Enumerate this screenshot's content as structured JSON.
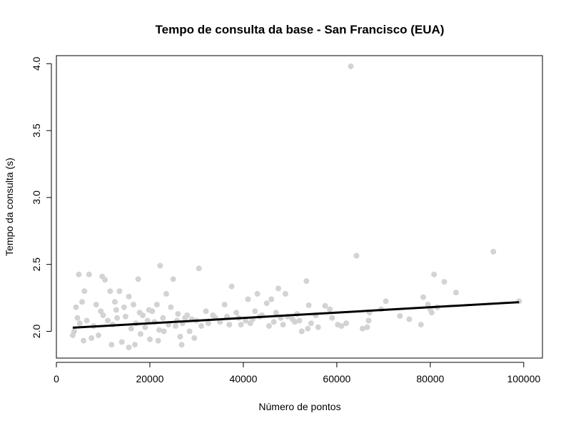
{
  "chart_data": {
    "type": "scatter",
    "title": "Tempo de consulta da base - San Francisco (EUA)",
    "xlabel": "Número de pontos",
    "ylabel": "Tempo da consulta (s)",
    "xlim": [
      0,
      104000
    ],
    "ylim": [
      1.8,
      4.06
    ],
    "x_ticks": [
      0,
      20000,
      40000,
      60000,
      80000,
      100000
    ],
    "x_tick_labels": [
      "0",
      "20000",
      "40000",
      "60000",
      "80000",
      "100000"
    ],
    "y_ticks": [
      2.0,
      2.5,
      3.0,
      3.5,
      4.0
    ],
    "y_tick_labels": [
      "2.0",
      "2.5",
      "3.0",
      "3.5",
      "4.0"
    ],
    "grid": false,
    "point_color": "#d3d3d3",
    "line_color": "#000000",
    "trend_line": {
      "x": [
        3500,
        99000
      ],
      "y": [
        2.027,
        2.218
      ]
    },
    "series": [
      {
        "points": [
          [
            63000,
            3.98
          ],
          [
            64200,
            2.565
          ],
          [
            93500,
            2.595
          ],
          [
            22200,
            2.49
          ],
          [
            30500,
            2.47
          ],
          [
            4800,
            2.425
          ],
          [
            7000,
            2.425
          ],
          [
            9800,
            2.41
          ],
          [
            10400,
            2.385
          ],
          [
            17500,
            2.39
          ],
          [
            25000,
            2.39
          ],
          [
            37500,
            2.335
          ],
          [
            43000,
            2.28
          ],
          [
            47500,
            2.32
          ],
          [
            53500,
            2.375
          ],
          [
            54000,
            2.195
          ],
          [
            57500,
            2.19
          ],
          [
            58500,
            2.165
          ],
          [
            60200,
            2.05
          ],
          [
            62000,
            2.06
          ],
          [
            65500,
            2.02
          ],
          [
            66500,
            2.03
          ],
          [
            66800,
            2.08
          ],
          [
            67000,
            2.14
          ],
          [
            69500,
            2.165
          ],
          [
            70500,
            2.225
          ],
          [
            73500,
            2.115
          ],
          [
            75500,
            2.09
          ],
          [
            78000,
            2.05
          ],
          [
            78500,
            2.255
          ],
          [
            79500,
            2.2
          ],
          [
            80000,
            2.165
          ],
          [
            80300,
            2.14
          ],
          [
            80800,
            2.425
          ],
          [
            81500,
            2.18
          ],
          [
            83000,
            2.37
          ],
          [
            85500,
            2.29
          ],
          [
            99000,
            2.225
          ],
          [
            50500,
            2.09
          ],
          [
            51000,
            2.07
          ],
          [
            52500,
            2.0
          ],
          [
            53800,
            2.02
          ],
          [
            54500,
            2.06
          ],
          [
            56000,
            2.03
          ],
          [
            59000,
            2.1
          ],
          [
            61000,
            2.04
          ],
          [
            55500,
            2.12
          ],
          [
            48000,
            2.1
          ],
          [
            49000,
            2.28
          ],
          [
            46000,
            2.24
          ],
          [
            45000,
            2.21
          ],
          [
            42500,
            2.15
          ],
          [
            41000,
            2.24
          ],
          [
            38500,
            2.14
          ],
          [
            36000,
            2.2
          ],
          [
            33500,
            2.12
          ],
          [
            32000,
            2.15
          ],
          [
            29000,
            2.09
          ],
          [
            27500,
            2.1
          ],
          [
            26000,
            2.13
          ],
          [
            24500,
            2.18
          ],
          [
            23500,
            2.28
          ],
          [
            21500,
            2.2
          ],
          [
            20500,
            2.15
          ],
          [
            19500,
            2.08
          ],
          [
            18500,
            2.12
          ],
          [
            16500,
            2.2
          ],
          [
            15500,
            2.26
          ],
          [
            14500,
            2.18
          ],
          [
            13500,
            2.3
          ],
          [
            12500,
            2.22
          ],
          [
            11500,
            2.3
          ],
          [
            8500,
            2.2
          ],
          [
            6000,
            2.3
          ],
          [
            5500,
            2.22
          ],
          [
            4200,
            2.18
          ],
          [
            3800,
            2.0
          ],
          [
            3500,
            1.97
          ],
          [
            47000,
            2.14
          ],
          [
            44000,
            2.12
          ],
          [
            40500,
            2.08
          ],
          [
            39500,
            2.05
          ],
          [
            35000,
            2.07
          ],
          [
            31000,
            2.04
          ],
          [
            28500,
            2.0
          ],
          [
            26500,
            1.96
          ],
          [
            25500,
            2.04
          ],
          [
            23000,
            2.0
          ],
          [
            20000,
            1.94
          ],
          [
            15500,
            1.88
          ],
          [
            14000,
            1.92
          ],
          [
            9000,
            1.97
          ],
          [
            7500,
            1.95
          ],
          [
            11000,
            2.08
          ],
          [
            12000,
            2.05
          ],
          [
            13000,
            2.1
          ],
          [
            16000,
            2.02
          ],
          [
            17000,
            2.06
          ],
          [
            18000,
            1.98
          ],
          [
            19000,
            2.03
          ],
          [
            21000,
            2.07
          ],
          [
            22000,
            2.01
          ],
          [
            24000,
            2.05
          ],
          [
            27000,
            2.06
          ],
          [
            30000,
            2.08
          ],
          [
            34000,
            2.1
          ],
          [
            37000,
            2.05
          ],
          [
            42000,
            2.09
          ],
          [
            45500,
            2.04
          ],
          [
            49500,
            2.11
          ],
          [
            52000,
            2.08
          ],
          [
            6500,
            2.08
          ],
          [
            8000,
            2.04
          ],
          [
            10000,
            2.12
          ],
          [
            5000,
            2.06
          ],
          [
            4500,
            2.1
          ],
          [
            9500,
            2.15
          ],
          [
            12800,
            2.16
          ],
          [
            14800,
            2.11
          ],
          [
            17800,
            2.14
          ],
          [
            19800,
            2.16
          ],
          [
            22800,
            2.1
          ],
          [
            25800,
            2.08
          ],
          [
            28000,
            2.12
          ],
          [
            32500,
            2.06
          ],
          [
            36500,
            2.11
          ],
          [
            39000,
            2.1
          ],
          [
            41500,
            2.06
          ],
          [
            43500,
            2.11
          ],
          [
            46500,
            2.07
          ],
          [
            48500,
            2.05
          ],
          [
            51500,
            2.13
          ],
          [
            5800,
            1.93
          ],
          [
            11800,
            1.9
          ],
          [
            16800,
            1.9
          ],
          [
            21800,
            1.93
          ],
          [
            26800,
            1.9
          ],
          [
            29500,
            1.95
          ]
        ]
      }
    ]
  }
}
